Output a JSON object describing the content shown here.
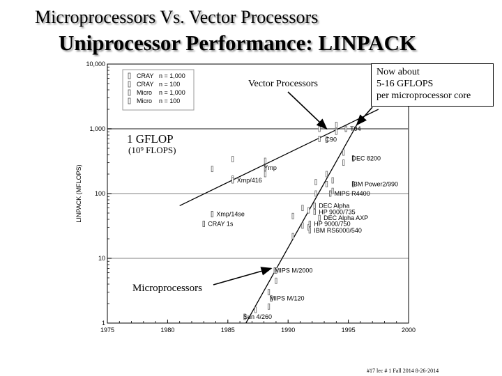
{
  "slide": {
    "title": "Microprocessors Vs. Vector Processors",
    "subtitle": "Uniprocessor Performance: LINPACK",
    "footer": "#17 lec # 1 Fall 2014 8-26-2014"
  },
  "annotations": {
    "vector": "Vector Processors",
    "now_lines": [
      "Now about",
      "5-16 GFLOPS",
      "per microprocessor core"
    ],
    "gflop": "1 GFLOP",
    "flops": "(10⁹ FLOPS)",
    "micro": "Microprocessors"
  },
  "colors": {
    "grid": "#9a9a9a",
    "axis": "#000000",
    "background": "#ffffff"
  },
  "chart_data": {
    "type": "scatter",
    "title": "Uniprocessor Performance: LINPACK",
    "xlabel": "",
    "ylabel": "LINPACK (MFLOPS)",
    "xlim": [
      1975,
      2000
    ],
    "ylim": [
      1,
      10000
    ],
    "yscale": "log",
    "x_ticks": [
      1975,
      1980,
      1985,
      1990,
      1995,
      2000
    ],
    "y_ticks": [
      {
        "value": 1,
        "label": "1"
      },
      {
        "value": 10,
        "label": "10"
      },
      {
        "value": 100,
        "label": "100"
      },
      {
        "value": 1000,
        "label": "1,000"
      },
      {
        "value": 10000,
        "label": "10,000"
      }
    ],
    "legend": {
      "position": "top-left",
      "entries": [
        {
          "system": "CRAY",
          "n": "n = 1,000"
        },
        {
          "system": "CRAY",
          "n": "n = 100"
        },
        {
          "system": "Micro",
          "n": "n = 1,000"
        },
        {
          "system": "Micro",
          "n": "n = 100"
        }
      ]
    },
    "labeled_points": [
      {
        "label": "CRAY 1s",
        "x": 1983.0,
        "y": 34,
        "anchor": "right"
      },
      {
        "label": "Xmp/14se",
        "x": 1983.7,
        "y": 48,
        "anchor": "right"
      },
      {
        "label": "Xmp/416",
        "x": 1985.4,
        "y": 160,
        "anchor": "right"
      },
      {
        "label": "Ymp",
        "x": 1988.1,
        "y": 250,
        "anchor": "left"
      },
      {
        "label": "C90",
        "x": 1993.2,
        "y": 680,
        "anchor": "left"
      },
      {
        "label": "T94",
        "x": 1994.8,
        "y": 1000,
        "anchor": "right"
      },
      {
        "label": "DEC 8200",
        "x": 1995.4,
        "y": 350,
        "anchor": "left"
      },
      {
        "label": "IBM Power2/990",
        "x": 1995.4,
        "y": 140,
        "anchor": "left"
      },
      {
        "label": "MIPS R4400",
        "x": 1993.5,
        "y": 100,
        "anchor": "right"
      },
      {
        "label": "DEC Alpha",
        "x": 1992.2,
        "y": 65,
        "anchor": "right"
      },
      {
        "label": "HP 9000/735",
        "x": 1992.2,
        "y": 52,
        "anchor": "right"
      },
      {
        "label": "DEC Alpha AXP",
        "x": 1992.6,
        "y": 42,
        "anchor": "right"
      },
      {
        "label": "HP 9000/750",
        "x": 1991.8,
        "y": 34,
        "anchor": "right"
      },
      {
        "label": "IBM RS6000/540",
        "x": 1991.8,
        "y": 27,
        "anchor": "right"
      },
      {
        "label": "MIPS M/2000",
        "x": 1989.0,
        "y": 6.5,
        "anchor": "left"
      },
      {
        "label": "MIPS M/120",
        "x": 1988.6,
        "y": 2.4,
        "anchor": "left"
      },
      {
        "label": "Sun 4/260",
        "x": 1986.4,
        "y": 1.25,
        "anchor": "left"
      }
    ],
    "marker_points": [
      {
        "x": 1983.0,
        "y": 34
      },
      {
        "x": 1983.7,
        "y": 240
      },
      {
        "x": 1983.7,
        "y": 48
      },
      {
        "x": 1985.4,
        "y": 340
      },
      {
        "x": 1985.4,
        "y": 170
      },
      {
        "x": 1988.1,
        "y": 320
      },
      {
        "x": 1988.1,
        "y": 200
      },
      {
        "x": 1992.6,
        "y": 1000
      },
      {
        "x": 1992.6,
        "y": 700
      },
      {
        "x": 1994.0,
        "y": 1150
      },
      {
        "x": 1994.0,
        "y": 900
      },
      {
        "x": 1994.6,
        "y": 430
      },
      {
        "x": 1994.6,
        "y": 300
      },
      {
        "x": 1993.2,
        "y": 200
      },
      {
        "x": 1993.2,
        "y": 140
      },
      {
        "x": 1992.3,
        "y": 150
      },
      {
        "x": 1992.3,
        "y": 100
      },
      {
        "x": 1993.7,
        "y": 160
      },
      {
        "x": 1993.7,
        "y": 110
      },
      {
        "x": 1991.2,
        "y": 60
      },
      {
        "x": 1991.7,
        "y": 55
      },
      {
        "x": 1991.2,
        "y": 32
      },
      {
        "x": 1991.7,
        "y": 30
      },
      {
        "x": 1990.4,
        "y": 45
      },
      {
        "x": 1990.4,
        "y": 22
      },
      {
        "x": 1988.9,
        "y": 6.5
      },
      {
        "x": 1989.0,
        "y": 4.5
      },
      {
        "x": 1988.4,
        "y": 3.0
      },
      {
        "x": 1988.4,
        "y": 1.8
      },
      {
        "x": 1987.3,
        "y": 1.6
      }
    ],
    "trend_lines": [
      {
        "name": "Vector Processors",
        "from": {
          "x": 1981.0,
          "y": 65
        },
        "to": {
          "x": 1997.5,
          "y": 2000
        }
      },
      {
        "name": "Microprocessors",
        "from": {
          "x": 1986.5,
          "y": 1.0
        },
        "to": {
          "x": 1995.7,
          "y": 1150
        }
      }
    ],
    "reference_lines": [
      {
        "label": "1 GFLOP",
        "y": 1000
      }
    ],
    "arrows": [
      {
        "for": "Vector Processors",
        "to": {
          "x": 1993.2,
          "y": 1000
        }
      },
      {
        "for": "Now about 5-16 GFLOPS per microprocessor core",
        "to": {
          "x": 1995.7,
          "y": 1150
        }
      },
      {
        "for": "Microprocessors",
        "to": {
          "x": 1988.6,
          "y": 7
        }
      }
    ]
  }
}
